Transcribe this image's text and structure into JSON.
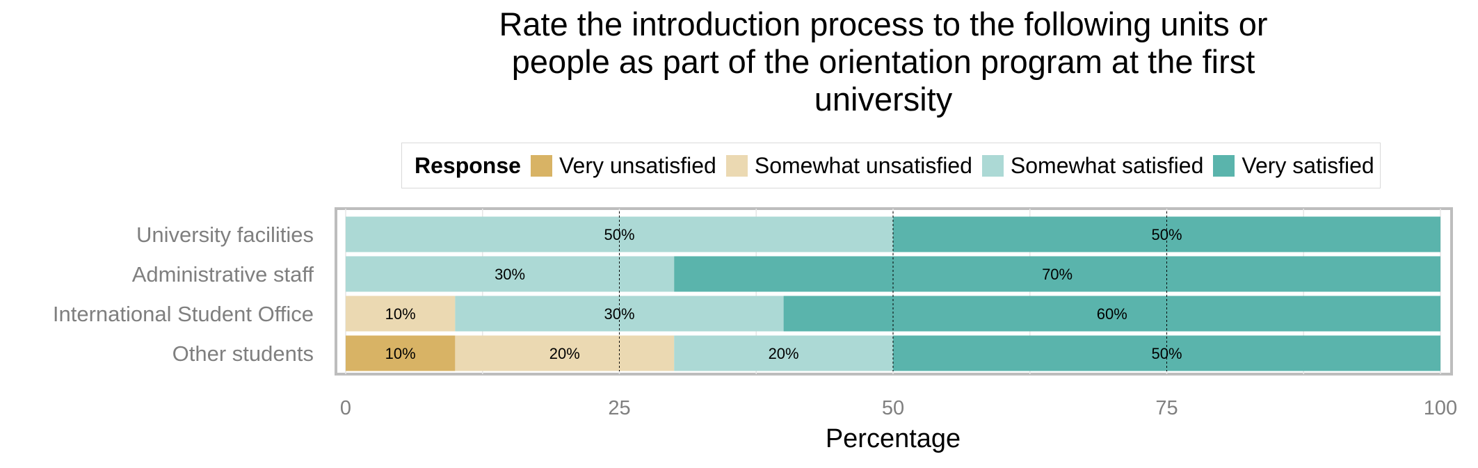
{
  "chart_data": {
    "type": "bar",
    "orientation": "horizontal",
    "stacked": true,
    "title": "Rate the introduction process to the following units or people as part of the orientation program at the first university",
    "title_lines": [
      "Rate the introduction process to the following units or",
      "people as part of the orientation program at the first",
      "university"
    ],
    "xlabel": "Percentage",
    "ylabel": "",
    "xlim": [
      0,
      100
    ],
    "xticks": [
      "0",
      "25",
      "50",
      "75",
      "100"
    ],
    "grid": true,
    "legend_position": "top",
    "legend_title": "Response",
    "categories": [
      "University facilities",
      "Administrative staff",
      "International Student Office",
      "Other students"
    ],
    "series": [
      {
        "name": "Very unsatisfied",
        "color": "#d8b365",
        "values": [
          0,
          0,
          0,
          10
        ],
        "labels": [
          "",
          "",
          "",
          "10%"
        ]
      },
      {
        "name": "Somewhat unsatisfied",
        "color": "#ebd9b2",
        "values": [
          0,
          0,
          10,
          20
        ],
        "labels": [
          "",
          "",
          "10%",
          "20%"
        ]
      },
      {
        "name": "Somewhat satisfied",
        "color": "#acd9d5",
        "values": [
          50,
          30,
          30,
          20
        ],
        "labels": [
          "50%",
          "30%",
          "30%",
          "20%"
        ]
      },
      {
        "name": "Very satisfied",
        "color": "#5ab4ac",
        "values": [
          50,
          70,
          60,
          50
        ],
        "labels": [
          "50%",
          "70%",
          "60%",
          "50%"
        ]
      }
    ]
  }
}
